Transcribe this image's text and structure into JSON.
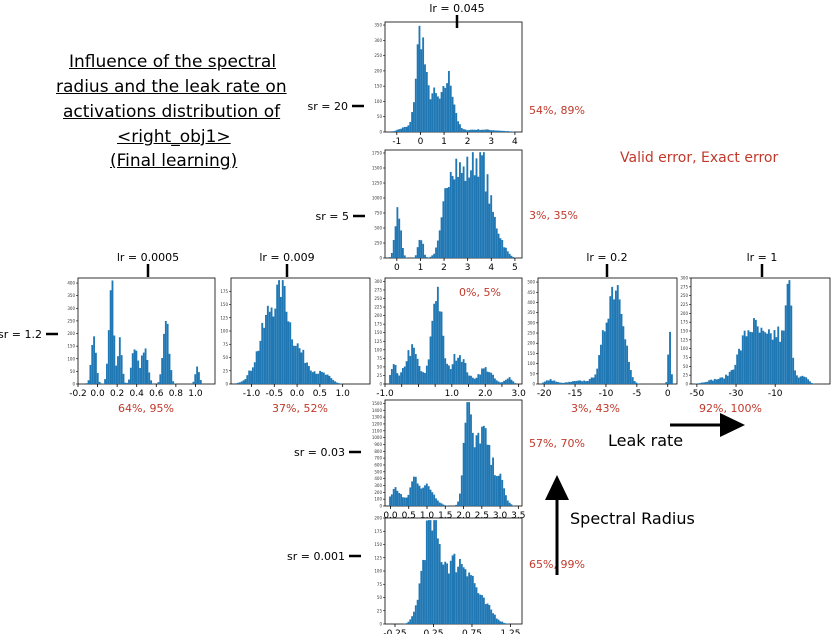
{
  "title_lines": [
    "Influence of the spectral",
    "radius and the leak rate on",
    "activations distribution of",
    "<right_obj1>",
    "(Final learning)"
  ],
  "legend": {
    "errors_label": "Valid error, Exact error"
  },
  "arrows": {
    "leak_rate_label": "Leak rate",
    "spectral_radius_label": "Spectral Radius"
  },
  "chart_data": [
    {
      "type": "histogram",
      "id": "lr0045_sr20",
      "lr_label": "lr = 0.045",
      "sr_label": "sr = 20",
      "errors": "54%, 89%",
      "xlim": [
        -1.5,
        4.3
      ],
      "xticks": [
        -1,
        0,
        1,
        2,
        3,
        4
      ],
      "xtick_labels": [
        "-1",
        "0",
        "1",
        "2",
        "3",
        "4"
      ],
      "ylim": [
        0,
        360
      ],
      "yticks": [
        0,
        50,
        100,
        150,
        200,
        250,
        300,
        350
      ],
      "peaks": [
        {
          "mu": 0.0,
          "sd": 0.18,
          "h": 320
        },
        {
          "mu": 0.55,
          "sd": 0.25,
          "h": 120
        },
        {
          "mu": 1.2,
          "sd": 0.22,
          "h": 170
        },
        {
          "mu": -0.6,
          "sd": 0.3,
          "h": 15
        },
        {
          "mu": 2.5,
          "sd": 0.8,
          "h": 8
        }
      ]
    },
    {
      "type": "histogram",
      "id": "sr5",
      "lr_label": "",
      "sr_label": "sr = 5",
      "errors": "3%, 35%",
      "xlim": [
        -0.5,
        5.3
      ],
      "xticks": [
        0,
        1,
        2,
        3,
        4,
        5
      ],
      "xtick_labels": [
        "0",
        "1",
        "2",
        "3",
        "4",
        "5"
      ],
      "ylim": [
        0,
        1800
      ],
      "yticks": [
        0,
        250,
        500,
        750,
        1000,
        1250,
        1500,
        1750
      ],
      "peaks": [
        {
          "mu": 0.05,
          "sd": 0.12,
          "h": 800
        },
        {
          "mu": 1.0,
          "sd": 0.1,
          "h": 380
        },
        {
          "mu": 2.3,
          "sd": 0.3,
          "h": 1450
        },
        {
          "mu": 3.0,
          "sd": 0.35,
          "h": 1200
        },
        {
          "mu": 3.6,
          "sd": 0.3,
          "h": 1300
        },
        {
          "mu": 4.2,
          "sd": 0.3,
          "h": 400
        }
      ]
    },
    {
      "type": "histogram",
      "id": "lr00005",
      "lr_label": "lr = 0.0005",
      "sr_label": "sr = 1.2",
      "errors": "64%, 95%",
      "xlim": [
        -0.2,
        1.2
      ],
      "xticks": [
        -0.2,
        0.0,
        0.2,
        0.4,
        0.6,
        0.8,
        1.0
      ],
      "xtick_labels": [
        "-0.2",
        "0.0",
        "0.2",
        "0.4",
        "0.6",
        "0.8",
        "1.0"
      ],
      "ylim": [
        0,
        420
      ],
      "yticks": [
        0,
        50,
        100,
        150,
        200,
        250,
        300,
        350,
        400
      ],
      "peaks": [
        {
          "mu": -0.04,
          "sd": 0.025,
          "h": 160
        },
        {
          "mu": 0.14,
          "sd": 0.025,
          "h": 400
        },
        {
          "mu": 0.23,
          "sd": 0.02,
          "h": 170
        },
        {
          "mu": 0.38,
          "sd": 0.03,
          "h": 130
        },
        {
          "mu": 0.48,
          "sd": 0.03,
          "h": 150
        },
        {
          "mu": 0.7,
          "sd": 0.03,
          "h": 250
        },
        {
          "mu": 1.02,
          "sd": 0.02,
          "h": 60
        }
      ]
    },
    {
      "type": "histogram",
      "id": "lr0009",
      "lr_label": "lr = 0.009",
      "sr_label": "",
      "errors": "37%, 52%",
      "xlim": [
        -1.45,
        1.6
      ],
      "xticks": [
        -1.0,
        -0.5,
        0.0,
        0.5,
        1.0
      ],
      "xtick_labels": [
        "-1.0",
        "-0.5",
        "0.0",
        "0.5",
        "1.0"
      ],
      "ylim": [
        0,
        200
      ],
      "yticks": [
        0,
        25,
        50,
        75,
        100,
        125,
        150,
        175
      ],
      "peaks": [
        {
          "mu": -0.5,
          "sd": 0.28,
          "h": 150
        },
        {
          "mu": -0.3,
          "sd": 0.08,
          "h": 60
        },
        {
          "mu": 0.05,
          "sd": 0.25,
          "h": 45
        },
        {
          "mu": 0.6,
          "sd": 0.15,
          "h": 15
        }
      ]
    },
    {
      "type": "histogram",
      "id": "center",
      "lr_label": "",
      "sr_label": "",
      "errors": "0%, 5%",
      "xlim": [
        -1.0,
        3.1
      ],
      "xticks": [
        -1.0,
        -0.5,
        0.0,
        0.5,
        1.0,
        1.5,
        2.0,
        2.5,
        3.0
      ],
      "xtick_labels": [
        "-1.0",
        "",
        "",
        "",
        "1.0",
        "",
        "2.0",
        "",
        "3.0"
      ],
      "ylim": [
        0,
        310
      ],
      "yticks": [
        0,
        25,
        50,
        75,
        100,
        125,
        150,
        175,
        200,
        225,
        250,
        275,
        300
      ],
      "peaks": [
        {
          "mu": -0.75,
          "sd": 0.08,
          "h": 60
        },
        {
          "mu": -0.2,
          "sd": 0.2,
          "h": 100
        },
        {
          "mu": 0.55,
          "sd": 0.15,
          "h": 280
        },
        {
          "mu": 1.2,
          "sd": 0.2,
          "h": 90
        },
        {
          "mu": 2.0,
          "sd": 0.2,
          "h": 45
        },
        {
          "mu": 2.7,
          "sd": 0.1,
          "h": 20
        }
      ]
    },
    {
      "type": "histogram",
      "id": "lr02",
      "lr_label": "lr = 0.2",
      "sr_label": "",
      "errors": "3%, 43%",
      "xlim": [
        -21,
        1.5
      ],
      "xticks": [
        -20,
        -15,
        -10,
        -5,
        0
      ],
      "xtick_labels": [
        "-20",
        "-15",
        "-10",
        "-5",
        "0"
      ],
      "ylim": [
        0,
        520
      ],
      "yticks": [
        0,
        50,
        100,
        150,
        200,
        250,
        300,
        350,
        400,
        450,
        500
      ],
      "peaks": [
        {
          "mu": -9,
          "sd": 1.3,
          "h": 430
        },
        {
          "mu": -7.5,
          "sd": 0.8,
          "h": 200
        },
        {
          "mu": 0.3,
          "sd": 0.2,
          "h": 330
        },
        {
          "mu": -19,
          "sd": 0.8,
          "h": 20
        },
        {
          "mu": -14,
          "sd": 2,
          "h": 15
        }
      ]
    },
    {
      "type": "histogram",
      "id": "lr1",
      "lr_label": "lr = 1",
      "sr_label": "",
      "errors": "92%, 100%",
      "xlim": [
        -53,
        18
      ],
      "xticks": [
        -50,
        -30,
        -10
      ],
      "xtick_labels": [
        "-50",
        "-30",
        "-10"
      ],
      "ylim": [
        0,
        300
      ],
      "yticks": [
        0,
        25,
        50,
        75,
        100,
        125,
        150,
        175,
        200,
        225,
        250,
        275,
        300
      ],
      "peaks": [
        {
          "mu": -22,
          "sd": 6,
          "h": 160
        },
        {
          "mu": -8,
          "sd": 5,
          "h": 130
        },
        {
          "mu": -3,
          "sd": 1.2,
          "h": 230
        },
        {
          "mu": -40,
          "sd": 5,
          "h": 12
        },
        {
          "mu": 5,
          "sd": 2,
          "h": 15
        }
      ]
    },
    {
      "type": "histogram",
      "id": "sr003",
      "lr_label": "",
      "sr_label": "sr = 0.03",
      "errors": "57%, 70%",
      "xlim": [
        -0.15,
        3.6
      ],
      "xticks": [
        0,
        0.5,
        1.0,
        1.5,
        2.0,
        2.5,
        3.0,
        3.5
      ],
      "xtick_labels": [
        "0.0",
        "0.5",
        "1.0",
        "1.5",
        "2.0",
        "2.5",
        "3.0",
        "3.5"
      ],
      "ylim": [
        0,
        1550
      ],
      "yticks": [
        0,
        100,
        200,
        300,
        400,
        500,
        600,
        700,
        800,
        900,
        1000,
        1100,
        1200,
        1300,
        1400,
        1500
      ],
      "peaks": [
        {
          "mu": 0.15,
          "sd": 0.15,
          "h": 250
        },
        {
          "mu": 0.65,
          "sd": 0.12,
          "h": 350
        },
        {
          "mu": 1.0,
          "sd": 0.2,
          "h": 280
        },
        {
          "mu": 2.1,
          "sd": 0.1,
          "h": 1450
        },
        {
          "mu": 2.5,
          "sd": 0.2,
          "h": 1100
        },
        {
          "mu": 2.95,
          "sd": 0.15,
          "h": 400
        }
      ]
    },
    {
      "type": "histogram",
      "id": "sr0001",
      "lr_label": "",
      "sr_label": "sr = 0.001",
      "errors": "65%, 99%",
      "xlim": [
        -0.38,
        1.4
      ],
      "xticks": [
        -0.25,
        0.25,
        0.75,
        1.25
      ],
      "xtick_labels": [
        "-0.25",
        "0.25",
        "0.75",
        "1.25"
      ],
      "ylim": [
        0,
        200
      ],
      "yticks": [
        0,
        25,
        50,
        75,
        100,
        125,
        150,
        175,
        200
      ],
      "peaks": [
        {
          "mu": 0.2,
          "sd": 0.1,
          "h": 165
        },
        {
          "mu": 0.45,
          "sd": 0.15,
          "h": 100
        },
        {
          "mu": 0.7,
          "sd": 0.12,
          "h": 80
        },
        {
          "mu": 0.95,
          "sd": 0.1,
          "h": 25
        }
      ]
    }
  ]
}
